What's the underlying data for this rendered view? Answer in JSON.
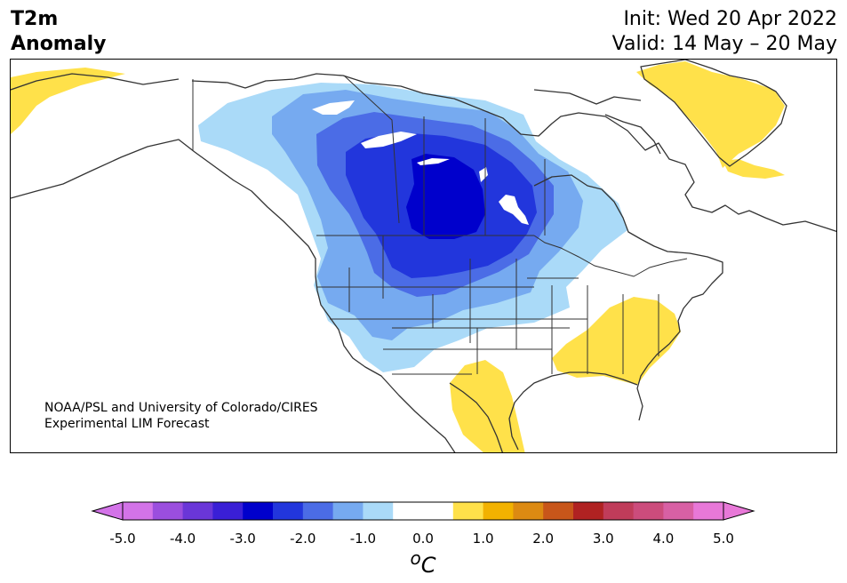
{
  "title": {
    "line1": "T2m",
    "line2": "Anomaly"
  },
  "init_line": "Init: Wed 20 Apr 2022",
  "valid_line": "Valid: 14 May – 20 May",
  "credit": {
    "line1": "NOAA/PSL and University of Colorado/CIRES",
    "line2": "Experimental LIM Forecast"
  },
  "colorbar": {
    "ticks": [
      "-5.0",
      "-4.0",
      "-3.0",
      "-2.0",
      "-1.0",
      "0.0",
      "1.0",
      "2.0",
      "3.0",
      "4.0",
      "5.0"
    ],
    "unit_sup": "o",
    "unit_main": "C",
    "colors": [
      "#d373e8",
      "#9b4ede",
      "#6a36d8",
      "#3a1fd6",
      "#0000cc",
      "#2236dc",
      "#4b6ce6",
      "#76aaf0",
      "#aadaf8",
      "#ffffff",
      "#ffffff",
      "#ffe14a",
      "#f2b200",
      "#dc8a12",
      "#c8561a",
      "#b02222",
      "#c03c5a",
      "#cc4c7c",
      "#d860a4",
      "#e878d8"
    ],
    "extend_min_color": "#d373e8",
    "extend_max_color": "#e878d8"
  },
  "colors": {
    "land_outline": "#333333",
    "lakes": "#ffffff"
  }
}
